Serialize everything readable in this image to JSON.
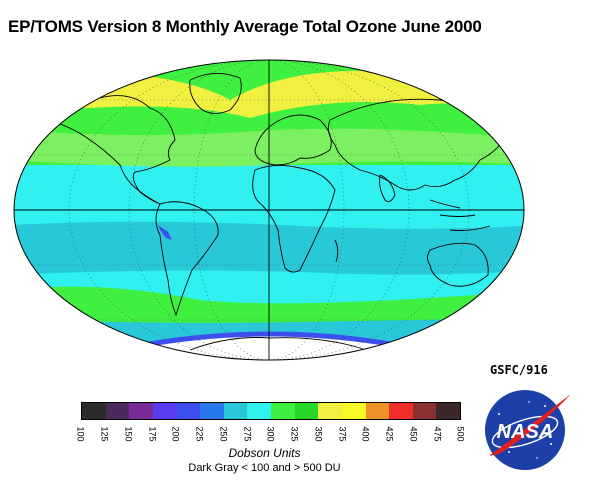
{
  "title": "EP/TOMS Version 8 Monthly Average Total Ozone June 2000",
  "credit": "GSFC/916",
  "colorbar": {
    "units_label": "Dobson Units",
    "note": "Dark Gray < 100 and > 500 DU",
    "ticks": [
      "100",
      "125",
      "150",
      "175",
      "200",
      "225",
      "250",
      "275",
      "300",
      "325",
      "350",
      "375",
      "400",
      "425",
      "450",
      "475",
      "500"
    ],
    "colors": [
      "#2b2b2b",
      "#4a2a5e",
      "#7a2a96",
      "#5a3cf0",
      "#3c50f0",
      "#2a78f0",
      "#28c8d8",
      "#30f0f0",
      "#40f040",
      "#28d828",
      "#f0f040",
      "#f8f828",
      "#f09028",
      "#f03028",
      "#8a3030",
      "#3a2828"
    ]
  },
  "map": {
    "projection": "Hammer-Aitoff (global)",
    "ozone_bands": [
      {
        "zone": "north polar cap",
        "level_du": "350-375",
        "color": "#40f040"
      },
      {
        "zone": "northern high latitudes",
        "level_du": "375-400",
        "color": "#f0f040"
      },
      {
        "zone": "northern mid latitudes",
        "level_du": "325-350",
        "color": "#40f040"
      },
      {
        "zone": "tropics",
        "level_du": "250-300",
        "color": "#30f0f0"
      },
      {
        "zone": "southern subtropics",
        "level_du": "275-300",
        "color": "#28c8d8"
      },
      {
        "zone": "southern mid latitudes",
        "level_du": "325-350",
        "color": "#40f040"
      },
      {
        "zone": "southern high latitudes",
        "level_du": "275-300",
        "color": "#28c8d8"
      },
      {
        "zone": "antarctic (no data)",
        "level_du": "",
        "color": "#ffffff"
      }
    ],
    "low_spot": {
      "region": "Andes",
      "color": "#3c50f0"
    }
  },
  "logo": {
    "text": "NASA"
  }
}
